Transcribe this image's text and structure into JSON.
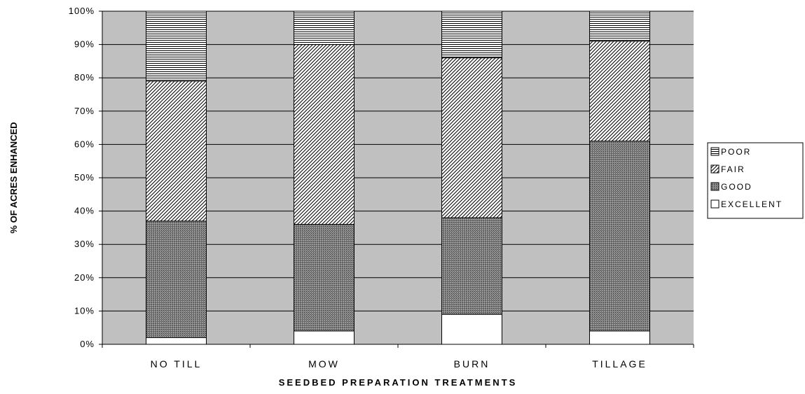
{
  "chart_data": {
    "type": "bar",
    "stacked": true,
    "percent_stacked": true,
    "categories": [
      "NO TILL",
      "MOW",
      "BURN",
      "TILLAGE"
    ],
    "series": [
      {
        "name": "EXCELLENT",
        "values": [
          2,
          4,
          9,
          4
        ],
        "pattern": "solid",
        "color": "#ffffff"
      },
      {
        "name": "GOOD",
        "values": [
          35,
          32,
          29,
          57
        ],
        "pattern": "crosshatch",
        "color": "#555555"
      },
      {
        "name": "FAIR",
        "values": [
          42,
          54,
          48,
          30
        ],
        "pattern": "diagonal",
        "color": "#000000"
      },
      {
        "name": "POOR",
        "values": [
          21,
          10,
          14,
          9
        ],
        "pattern": "horizontal",
        "color": "#000000"
      }
    ],
    "legend_order": [
      "POOR",
      "FAIR",
      "GOOD",
      "EXCELLENT"
    ],
    "title": "",
    "xlabel": "SEEDBED PREPARATION TREATMENTS",
    "ylabel": "% OF ACRES ENHANCED",
    "ylim": [
      0,
      100
    ],
    "yticks": [
      0,
      10,
      20,
      30,
      40,
      50,
      60,
      70,
      80,
      90,
      100
    ],
    "ytick_suffix": "%",
    "grid": true,
    "legend_position": "right",
    "plot_background": "#c0c0c0"
  }
}
